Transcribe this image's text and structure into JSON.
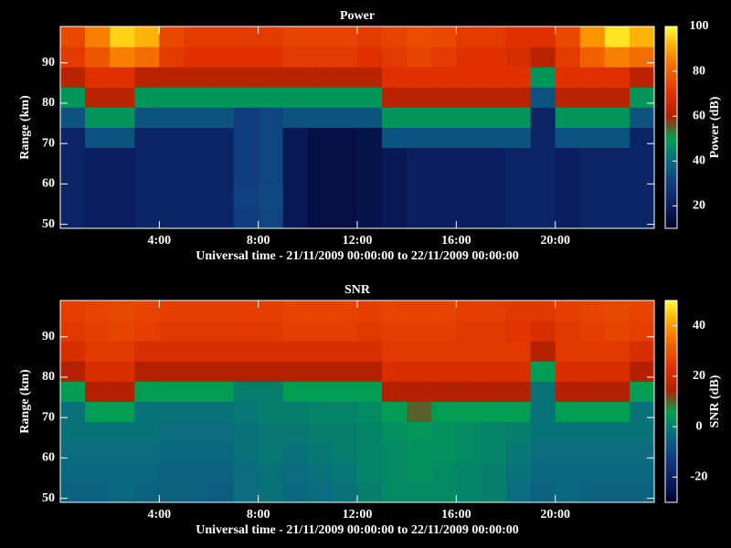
{
  "chart_data": [
    {
      "type": "heatmap",
      "title": "Power",
      "xlabel": "Universal time - 21/11/2009 00:00:00 to 22/11/2009 00:00:00",
      "ylabel": "Range (km)",
      "colorbar_label": "Power (dB)",
      "xlim": [
        0,
        24
      ],
      "xticks": [
        {
          "value": 4,
          "label": "4:00"
        },
        {
          "value": 8,
          "label": "8:00"
        },
        {
          "value": 12,
          "label": "12:00"
        },
        {
          "value": 16,
          "label": "16:00"
        },
        {
          "value": 20,
          "label": "20:00"
        }
      ],
      "ylim": [
        49,
        99
      ],
      "yticks": [
        50,
        60,
        70,
        80,
        90
      ],
      "zlim": [
        10,
        100
      ],
      "colorbar_ticks": [
        20,
        40,
        60,
        80,
        100
      ],
      "colormap": [
        "#00002a",
        "#0a1e60",
        "#103c80",
        "#0a6a80",
        "#00a050",
        "#b02000",
        "#e03000",
        "#f06000",
        "#ffa000",
        "#ffff30"
      ],
      "xbins": [
        0,
        1,
        2,
        3,
        4,
        5,
        6,
        7,
        8,
        9,
        10,
        11,
        12,
        13,
        14,
        15,
        16,
        17,
        18,
        19,
        20,
        21,
        22,
        23,
        24
      ],
      "ybins": [
        49,
        54,
        59,
        64,
        69,
        74,
        79,
        84,
        89,
        94,
        99
      ],
      "z": [
        [
          22,
          20,
          20,
          22,
          22,
          22,
          22,
          30,
          32,
          18,
          15,
          15,
          16,
          18,
          20,
          20,
          20,
          20,
          22,
          22,
          20,
          22,
          22,
          22
        ],
        [
          22,
          20,
          20,
          22,
          22,
          22,
          22,
          31,
          33,
          18,
          15,
          15,
          16,
          18,
          20,
          20,
          20,
          20,
          22,
          22,
          20,
          22,
          22,
          22
        ],
        [
          22,
          20,
          20,
          22,
          22,
          22,
          22,
          30,
          32,
          18,
          15,
          15,
          16,
          18,
          20,
          20,
          20,
          20,
          22,
          22,
          20,
          22,
          22,
          22
        ],
        [
          22,
          20,
          20,
          22,
          22,
          22,
          22,
          30,
          32,
          18,
          15,
          15,
          16,
          18,
          20,
          20,
          20,
          20,
          22,
          22,
          20,
          22,
          22,
          22
        ],
        [
          22,
          35,
          35,
          22,
          22,
          22,
          22,
          30,
          32,
          18,
          15,
          15,
          16,
          35,
          35,
          35,
          35,
          35,
          35,
          22,
          35,
          35,
          35,
          22
        ],
        [
          35,
          48,
          48,
          35,
          35,
          35,
          35,
          30,
          32,
          35,
          35,
          35,
          35,
          48,
          48,
          48,
          48,
          48,
          48,
          22,
          48,
          48,
          48,
          35
        ],
        [
          48,
          62,
          62,
          48,
          48,
          48,
          48,
          48,
          48,
          48,
          48,
          48,
          48,
          62,
          62,
          62,
          62,
          62,
          62,
          35,
          62,
          62,
          62,
          48
        ],
        [
          62,
          70,
          70,
          62,
          62,
          62,
          62,
          62,
          62,
          62,
          62,
          62,
          62,
          70,
          70,
          70,
          70,
          70,
          70,
          48,
          70,
          70,
          70,
          62
        ],
        [
          72,
          78,
          85,
          82,
          72,
          70,
          70,
          70,
          70,
          72,
          72,
          72,
          70,
          72,
          74,
          72,
          70,
          70,
          68,
          62,
          72,
          80,
          85,
          82
        ],
        [
          75,
          85,
          95,
          92,
          75,
          72,
          72,
          72,
          72,
          74,
          74,
          74,
          72,
          74,
          76,
          75,
          72,
          72,
          70,
          70,
          75,
          88,
          97,
          92
        ]
      ]
    },
    {
      "type": "heatmap",
      "title": "SNR",
      "xlabel": "Universal time - 21/11/2009 00:00:00 to 22/11/2009 00:00:00",
      "ylabel": "Range (km)",
      "colorbar_label": "SNR (dB)",
      "xlim": [
        0,
        24
      ],
      "xticks": [
        {
          "value": 4,
          "label": "4:00"
        },
        {
          "value": 8,
          "label": "8:00"
        },
        {
          "value": 12,
          "label": "12:00"
        },
        {
          "value": 16,
          "label": "16:00"
        },
        {
          "value": 20,
          "label": "20:00"
        }
      ],
      "ylim": [
        49,
        99
      ],
      "yticks": [
        50,
        60,
        70,
        80,
        90
      ],
      "zlim": [
        -30,
        50
      ],
      "colorbar_ticks": [
        -20,
        0,
        20,
        40
      ],
      "colormap": [
        "#00002a",
        "#0a1e60",
        "#103c80",
        "#0a6a80",
        "#00a050",
        "#b02000",
        "#e03000",
        "#f06000",
        "#ffa000",
        "#ffff30"
      ],
      "xbins": [
        0,
        1,
        2,
        3,
        4,
        5,
        6,
        7,
        8,
        9,
        10,
        11,
        12,
        13,
        14,
        15,
        16,
        17,
        18,
        19,
        20,
        21,
        22,
        23,
        24
      ],
      "ybins": [
        49,
        54,
        59,
        64,
        69,
        74,
        79,
        84,
        89,
        94,
        99
      ],
      "z": [
        [
          -5,
          -5,
          -4,
          -5,
          -5,
          -5,
          -6,
          -3,
          -2,
          -4,
          -3,
          -2,
          0,
          2,
          2,
          2,
          1,
          0,
          -3,
          -5,
          -4,
          -5,
          -5,
          -5
        ],
        [
          -4,
          -4,
          -4,
          -4,
          -5,
          -5,
          -5,
          -3,
          -2,
          -3,
          -2,
          -1,
          1,
          2,
          3,
          2,
          1,
          0,
          -2,
          -4,
          -4,
          -4,
          -4,
          -4
        ],
        [
          -3,
          -3,
          -3,
          -3,
          -4,
          -4,
          -4,
          -2,
          -1,
          -2,
          -1,
          0,
          1,
          2,
          3,
          3,
          2,
          1,
          -1,
          -3,
          -3,
          -3,
          -3,
          -3
        ],
        [
          -2,
          -2,
          -2,
          -2,
          -3,
          -3,
          -3,
          -2,
          -1,
          -1,
          0,
          0,
          1,
          3,
          4,
          3,
          2,
          1,
          0,
          -2,
          -2,
          -2,
          -2,
          -2
        ],
        [
          -2,
          5,
          5,
          -2,
          -2,
          -2,
          -2,
          -1,
          0,
          0,
          1,
          1,
          2,
          5,
          10,
          5,
          5,
          5,
          5,
          -2,
          5,
          5,
          5,
          -2
        ],
        [
          5,
          15,
          15,
          5,
          5,
          5,
          5,
          0,
          0,
          5,
          5,
          5,
          5,
          15,
          15,
          15,
          15,
          15,
          15,
          -2,
          15,
          15,
          15,
          5
        ],
        [
          15,
          22,
          22,
          15,
          15,
          15,
          15,
          15,
          15,
          15,
          15,
          15,
          15,
          22,
          22,
          22,
          22,
          22,
          22,
          5,
          22,
          22,
          22,
          15
        ],
        [
          22,
          25,
          25,
          22,
          22,
          22,
          22,
          22,
          22,
          22,
          22,
          22,
          22,
          25,
          25,
          25,
          25,
          25,
          25,
          15,
          25,
          25,
          25,
          22
        ],
        [
          25,
          26,
          27,
          26,
          25,
          25,
          25,
          25,
          25,
          26,
          26,
          26,
          25,
          26,
          26,
          26,
          25,
          25,
          24,
          22,
          25,
          26,
          27,
          26
        ],
        [
          26,
          27,
          28,
          27,
          26,
          26,
          26,
          26,
          26,
          27,
          27,
          27,
          26,
          27,
          27,
          27,
          26,
          26,
          25,
          25,
          26,
          27,
          28,
          27
        ]
      ]
    }
  ]
}
